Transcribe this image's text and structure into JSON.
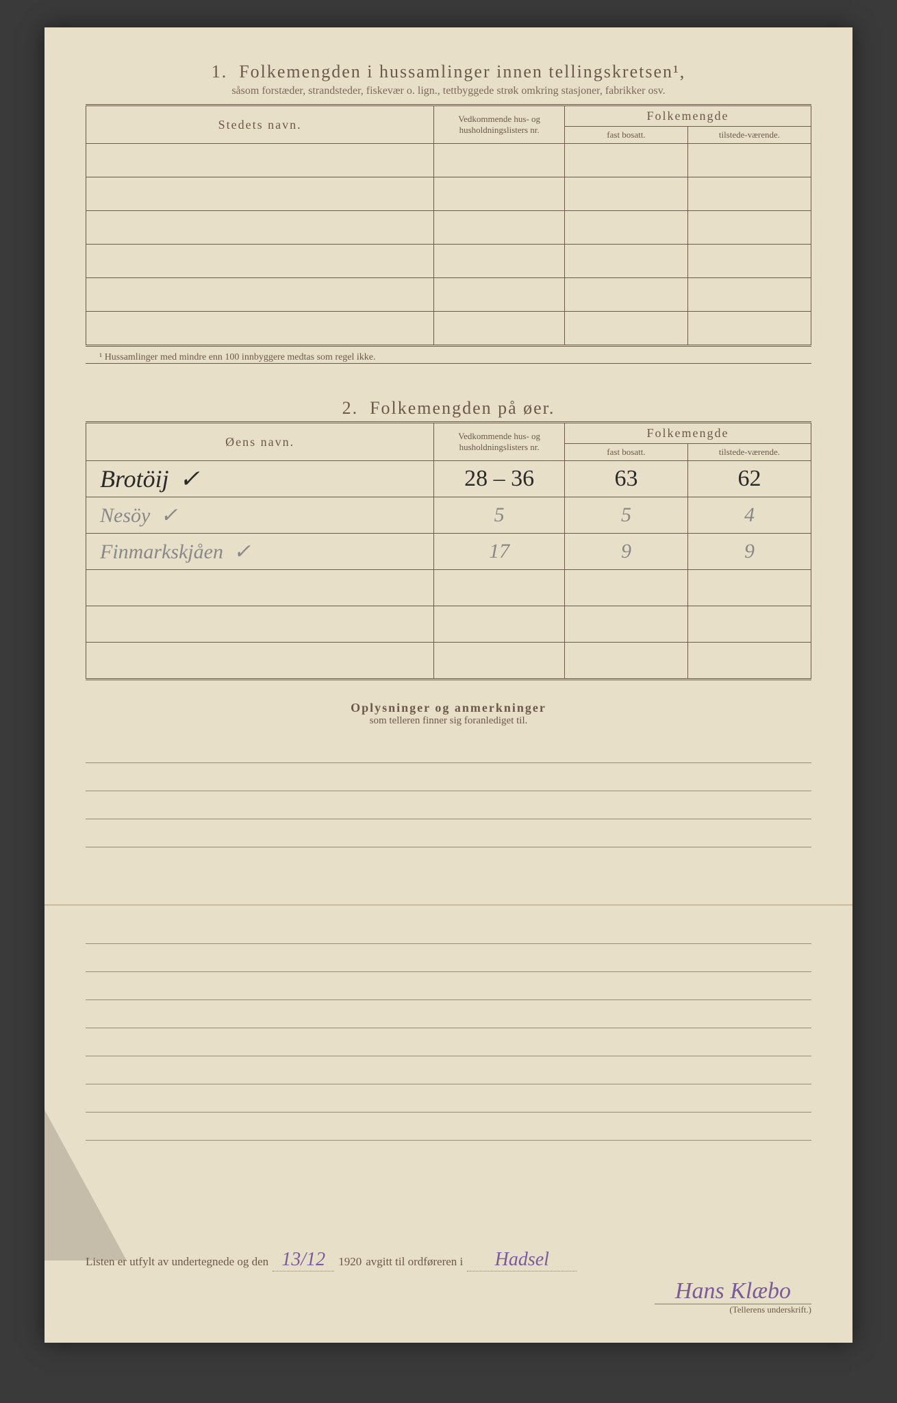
{
  "section1": {
    "number": "1.",
    "title": "Folkemengden i hussamlinger innen tellingskretsen¹,",
    "subtitle": "såsom forstæder, strandsteder, fiskevær o. lign., tettbyggede strøk omkring stasjoner, fabrikker osv.",
    "headers": {
      "name": "Stedets navn.",
      "nr": "Vedkommende hus- og husholdningslisters nr.",
      "pop": "Folkemengde",
      "pop_fast": "fast bosatt.",
      "pop_tilst": "tilstede-værende."
    },
    "footnote": "¹ Hussamlinger med mindre enn 100 innbyggere medtas som regel ikke."
  },
  "section2": {
    "number": "2.",
    "title": "Folkemengden på øer.",
    "headers": {
      "name": "Øens navn.",
      "nr": "Vedkommende hus- og husholdningslisters nr.",
      "pop": "Folkemengde",
      "pop_fast": "fast bosatt.",
      "pop_tilst": "tilstede-værende."
    },
    "rows": [
      {
        "name": "Brotöij",
        "check": "✓",
        "nr": "28 – 36",
        "fast": "63",
        "tilst": "62",
        "style": "ink"
      },
      {
        "name": "Nesöy",
        "check": "✓",
        "nr": "5",
        "fast": "5",
        "tilst": "4",
        "style": "pencil"
      },
      {
        "name": "Finmarkskjåen",
        "check": "✓",
        "nr": "17",
        "fast": "9",
        "tilst": "9",
        "style": "pencil"
      }
    ]
  },
  "remarks": {
    "title": "Oplysninger og anmerkninger",
    "subtitle": "som telleren finner sig foranlediget til."
  },
  "footer": {
    "text1": "Listen er utfylt av undertegnede og den",
    "date": "13/12",
    "year": "1920",
    "text2": "avgitt til ordføreren i",
    "place": "Hadsel",
    "signature": "Hans Klæbo",
    "sig_label": "(Tellerens underskrift.)"
  },
  "styling": {
    "paper_bg": "#e8dfc8",
    "text_color": "#6b5a48",
    "ink_color": "#2a2a2a",
    "pencil_color": "#888888",
    "purple_ink": "#7a5a9a",
    "border_color": "#6b5a48"
  }
}
